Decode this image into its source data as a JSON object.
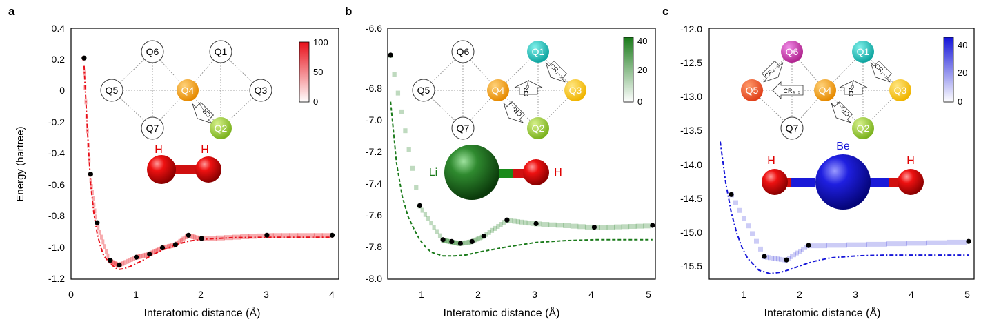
{
  "chart_data": [
    {
      "panel_label": "a",
      "type": "line",
      "xlabel": "Interatomic distance (Å)",
      "ylabel": "Energy (hartree)",
      "xlim": [
        0,
        4.1
      ],
      "ylim": [
        -1.2,
        0.4
      ],
      "xticks": [
        "0",
        "1",
        "2",
        "3",
        "4"
      ],
      "yticks": [
        "-1.2",
        "-1.0",
        "-0.8",
        "-0.6",
        "-0.4",
        "-0.2",
        "0",
        "0.2",
        "0.4"
      ],
      "colorbar": {
        "ticks": [
          "0",
          "50",
          "100"
        ],
        "max": 100,
        "color": "#e8101a"
      },
      "molecule_labels": [
        "H",
        "H"
      ],
      "qubits": [
        "Q6",
        "Q1",
        "Q5",
        "Q4",
        "Q3",
        "Q7",
        "Q2"
      ],
      "gate_labels": [
        "CR₂₋₄"
      ],
      "theory_curve": {
        "x": [
          0.2,
          0.25,
          0.3,
          0.35,
          0.4,
          0.45,
          0.5,
          0.6,
          0.7,
          0.74,
          0.8,
          0.9,
          1.0,
          1.1,
          1.2,
          1.4,
          1.6,
          1.8,
          2.0,
          2.5,
          3.0,
          3.5,
          4.0
        ],
        "y": [
          0.16,
          -0.25,
          -0.59,
          -0.78,
          -0.91,
          -0.99,
          -1.05,
          -1.1,
          -1.135,
          -1.137,
          -1.134,
          -1.12,
          -1.1,
          -1.08,
          -1.056,
          -1.014,
          -0.981,
          -0.958,
          -0.946,
          -0.935,
          -0.933,
          -0.933,
          -0.933
        ]
      },
      "measured": {
        "x": [
          0.2,
          0.3,
          0.4,
          0.6,
          0.74,
          1.0,
          1.2,
          1.4,
          1.6,
          1.8,
          2.0,
          3.0,
          4.0
        ],
        "y": [
          0.21,
          -0.53,
          -0.84,
          -1.08,
          -1.11,
          -1.06,
          -1.04,
          -1.0,
          -0.98,
          -0.92,
          -0.94,
          -0.92,
          -0.92
        ]
      }
    },
    {
      "panel_label": "b",
      "type": "line",
      "xlabel": "Interatomic distance (Å)",
      "ylabel": "",
      "xlim": [
        0.45,
        5.05
      ],
      "ylim": [
        -8.0,
        -6.6
      ],
      "xticks": [
        "1",
        "2",
        "3",
        "4",
        "5"
      ],
      "yticks": [
        "-8.0",
        "-7.8",
        "-7.6",
        "-7.4",
        "-7.2",
        "-7.0",
        "-6.8",
        "-6.6"
      ],
      "colorbar": {
        "ticks": [
          "0",
          "20",
          "40"
        ],
        "max": 40,
        "color": "#1a7a1a"
      },
      "molecule_labels": [
        "Li",
        "H"
      ],
      "qubits": [
        "Q6",
        "Q1",
        "Q5",
        "Q4",
        "Q3",
        "Q7",
        "Q2"
      ],
      "gate_labels": [
        "CR₁₋₃",
        "CR₂₋₁",
        "CR₂₋₄"
      ],
      "theory_curve": {
        "x": [
          0.5,
          0.6,
          0.7,
          0.8,
          0.9,
          1.0,
          1.1,
          1.2,
          1.4,
          1.6,
          1.8,
          2.0,
          2.5,
          3.0,
          3.5,
          4.0,
          4.5,
          5.0
        ],
        "y": [
          -7.01,
          -7.35,
          -7.54,
          -7.65,
          -7.72,
          -7.78,
          -7.82,
          -7.85,
          -7.87,
          -7.87,
          -7.865,
          -7.85,
          -7.82,
          -7.795,
          -7.785,
          -7.78,
          -7.78,
          -7.78
        ]
      },
      "measured": {
        "x": [
          0.5,
          1.0,
          1.4,
          1.55,
          1.7,
          1.9,
          2.1,
          2.5,
          3.0,
          4.0,
          5.0
        ],
        "y": [
          -6.75,
          -7.59,
          -7.78,
          -7.79,
          -7.8,
          -7.79,
          -7.76,
          -7.67,
          -7.69,
          -7.71,
          -7.7
        ]
      }
    },
    {
      "panel_label": "c",
      "type": "line",
      "xlabel": "Interatomic distance (Å)",
      "ylabel": "",
      "xlim": [
        0.3,
        5.1
      ],
      "ylim": [
        -15.65,
        -12.0
      ],
      "xticks": [
        "1",
        "2",
        "3",
        "4",
        "5"
      ],
      "yticks": [
        "-15.5",
        "-15.0",
        "-14.5",
        "-14.0",
        "-13.5",
        "-13.0",
        "-12.5",
        "-12.0"
      ],
      "colorbar": {
        "ticks": [
          "0",
          "20",
          "40"
        ],
        "max": 45,
        "color": "#1515d8"
      },
      "molecule_labels": [
        "H",
        "Be",
        "H"
      ],
      "qubits": [
        "Q6",
        "Q1",
        "Q5",
        "Q4",
        "Q3",
        "Q7",
        "Q2"
      ],
      "gate_labels": [
        "CR₆₋₅",
        "CR₄₋₅",
        "CR₁₋₃",
        "CR₂₋₁",
        "CR₂₋₄"
      ],
      "theory_curve": {
        "x": [
          0.5,
          0.6,
          0.7,
          0.8,
          0.9,
          1.0,
          1.2,
          1.4,
          1.6,
          1.8,
          2.0,
          2.2,
          2.5,
          3.0,
          3.5,
          4.0,
          4.5,
          5.0
        ],
        "y": [
          -13.65,
          -14.25,
          -14.68,
          -14.98,
          -15.2,
          -15.35,
          -15.52,
          -15.57,
          -15.55,
          -15.5,
          -15.44,
          -15.39,
          -15.34,
          -15.31,
          -15.3,
          -15.3,
          -15.3,
          -15.3
        ]
      },
      "measured": {
        "x": [
          0.7,
          1.3,
          1.7,
          2.1,
          5.0
        ],
        "y": [
          -14.42,
          -15.32,
          -15.37,
          -15.16,
          -15.1
        ]
      }
    }
  ]
}
